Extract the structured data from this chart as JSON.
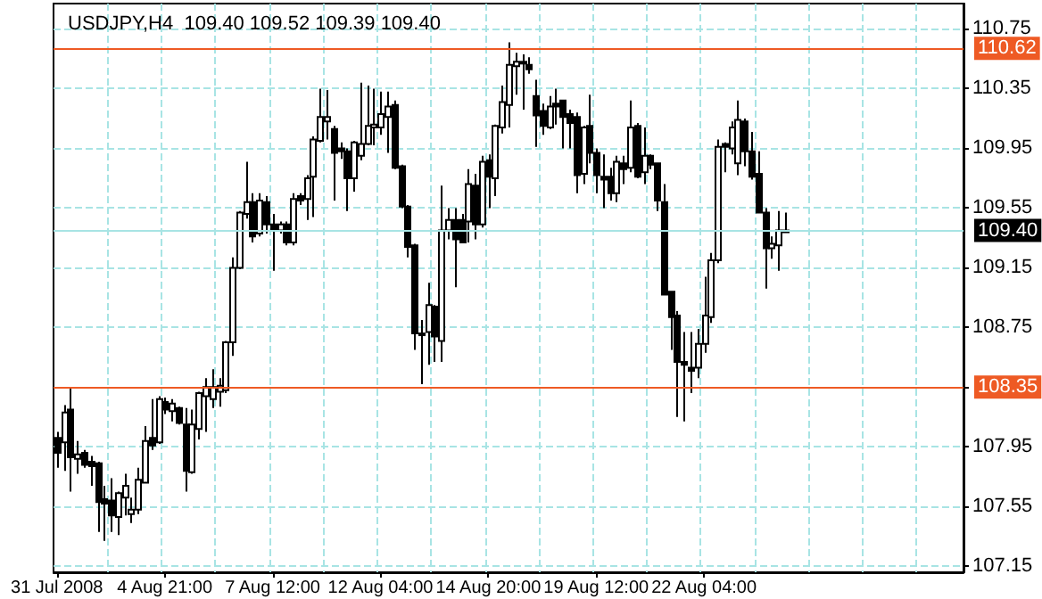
{
  "chart_data": {
    "type": "candlestick",
    "title": "USDJPY,H4  109.40 109.52 109.39 109.40",
    "categories": [
      "31 Jul 2008",
      null,
      null,
      null,
      null,
      null,
      null,
      null,
      null,
      null,
      null,
      null,
      null,
      null,
      null,
      null,
      "4 Aug 21:00",
      null,
      null,
      null,
      null,
      null,
      null,
      null,
      null,
      null,
      null,
      null,
      null,
      null,
      null,
      null,
      "7 Aug 12:00",
      null,
      null,
      null,
      null,
      null,
      null,
      null,
      null,
      null,
      null,
      null,
      null,
      null,
      null,
      null,
      "12 Aug 04:00",
      null,
      null,
      null,
      null,
      null,
      null,
      null,
      null,
      null,
      null,
      null,
      null,
      null,
      null,
      null,
      "14 Aug 20:00",
      null,
      null,
      null,
      null,
      null,
      null,
      null,
      null,
      null,
      null,
      null,
      null,
      null,
      null,
      null,
      "19 Aug 12:00",
      null,
      null,
      null,
      null,
      null,
      null,
      null,
      null,
      null,
      null,
      null,
      null,
      null,
      null,
      null,
      "22 Aug 04:00",
      null,
      null,
      null,
      null,
      null,
      null,
      null,
      null,
      null,
      null,
      null,
      null,
      null,
      null,
      null,
      null,
      null,
      null,
      null,
      null,
      null,
      null,
      null,
      null,
      null,
      null,
      null,
      null,
      null,
      null,
      null,
      null,
      null,
      null,
      null,
      null,
      null,
      null
    ],
    "ohlc": [
      [
        108.01,
        108.05,
        107.81,
        107.91
      ],
      [
        107.98,
        108.23,
        107.79,
        108.18
      ],
      [
        108.2,
        108.35,
        107.65,
        107.88
      ],
      [
        107.87,
        107.99,
        107.77,
        107.9
      ],
      [
        107.91,
        107.93,
        107.81,
        107.83
      ],
      [
        107.85,
        107.89,
        107.69,
        107.82
      ],
      [
        107.84,
        107.85,
        107.38,
        107.58
      ],
      [
        107.6,
        107.69,
        107.32,
        107.57
      ],
      [
        107.59,
        107.74,
        107.38,
        107.49
      ],
      [
        107.48,
        107.65,
        107.36,
        107.64
      ],
      [
        107.61,
        107.77,
        107.49,
        107.69
      ],
      [
        107.5,
        107.61,
        107.44,
        107.53
      ],
      [
        107.53,
        107.81,
        107.5,
        107.73
      ],
      [
        107.71,
        108.09,
        107.71,
        107.99
      ],
      [
        108.01,
        108.27,
        107.93,
        107.96
      ],
      [
        107.98,
        108.29,
        107.97,
        108.27
      ],
      [
        108.25,
        108.28,
        108.17,
        108.2
      ],
      [
        108.19,
        108.27,
        108.12,
        108.24
      ],
      [
        108.21,
        108.22,
        108.1,
        108.11
      ],
      [
        108.1,
        108.21,
        107.65,
        107.79
      ],
      [
        107.78,
        108.2,
        107.77,
        108.1
      ],
      [
        108.07,
        108.32,
        108.0,
        108.31
      ],
      [
        108.29,
        108.41,
        108.05,
        108.35
      ],
      [
        108.27,
        108.47,
        108.21,
        108.35
      ],
      [
        108.32,
        108.41,
        108.22,
        108.36
      ],
      [
        108.33,
        108.66,
        108.31,
        108.65
      ],
      [
        108.65,
        109.22,
        108.56,
        109.15
      ],
      [
        109.15,
        109.53,
        109.14,
        109.52
      ],
      [
        109.51,
        109.86,
        109.48,
        109.59
      ],
      [
        109.59,
        109.65,
        109.32,
        109.36
      ],
      [
        109.38,
        109.65,
        109.36,
        109.6
      ],
      [
        109.59,
        109.63,
        109.38,
        109.44
      ],
      [
        109.44,
        109.51,
        109.13,
        109.4
      ],
      [
        109.4,
        109.46,
        109.38,
        109.44
      ],
      [
        109.44,
        109.46,
        109.3,
        109.32
      ],
      [
        109.32,
        109.65,
        109.3,
        109.61
      ],
      [
        109.63,
        109.65,
        109.57,
        109.6
      ],
      [
        109.61,
        109.77,
        109.47,
        109.75
      ],
      [
        109.76,
        110.03,
        109.49,
        110.01
      ],
      [
        110.0,
        110.35,
        109.99,
        110.16
      ],
      [
        110.13,
        110.34,
        110.01,
        110.16
      ],
      [
        110.08,
        110.1,
        109.6,
        109.92
      ],
      [
        109.95,
        109.99,
        109.88,
        109.93
      ],
      [
        109.93,
        109.95,
        109.53,
        109.75
      ],
      [
        109.75,
        110.0,
        109.66,
        109.99
      ],
      [
        109.9,
        110.39,
        109.87,
        109.98
      ],
      [
        109.98,
        110.37,
        109.97,
        110.1
      ],
      [
        110.09,
        110.35,
        109.97,
        110.11
      ],
      [
        110.09,
        110.33,
        110.04,
        110.18
      ],
      [
        110.16,
        110.33,
        109.92,
        110.23
      ],
      [
        110.24,
        110.27,
        109.81,
        109.82
      ],
      [
        109.83,
        109.84,
        109.55,
        109.56
      ],
      [
        109.56,
        109.57,
        109.22,
        109.29
      ],
      [
        109.3,
        109.31,
        108.6,
        108.71
      ],
      [
        108.71,
        108.8,
        108.37,
        108.7
      ],
      [
        108.72,
        109.05,
        108.5,
        108.9
      ],
      [
        108.89,
        108.9,
        108.52,
        108.69
      ],
      [
        108.66,
        109.7,
        108.52,
        109.4
      ],
      [
        109.4,
        109.55,
        109.34,
        109.47
      ],
      [
        109.47,
        109.55,
        109.02,
        109.34
      ],
      [
        109.47,
        109.51,
        109.32,
        109.32
      ],
      [
        109.46,
        109.81,
        109.32,
        109.71
      ],
      [
        109.7,
        109.78,
        109.34,
        109.44
      ],
      [
        109.44,
        109.9,
        109.42,
        109.86
      ],
      [
        109.87,
        109.91,
        109.55,
        109.76
      ],
      [
        109.75,
        110.11,
        109.63,
        110.1
      ],
      [
        110.09,
        110.37,
        110.05,
        110.26
      ],
      [
        110.24,
        110.66,
        110.09,
        110.51
      ],
      [
        110.5,
        110.59,
        110.31,
        110.53
      ],
      [
        110.52,
        110.58,
        110.21,
        110.53
      ],
      [
        110.51,
        110.56,
        110.45,
        110.48
      ],
      [
        110.3,
        110.41,
        109.96,
        110.17
      ],
      [
        110.2,
        110.25,
        110.04,
        110.1
      ],
      [
        110.09,
        110.3,
        110.08,
        110.23
      ],
      [
        110.25,
        110.35,
        110.11,
        110.23
      ],
      [
        110.27,
        110.27,
        109.95,
        110.16
      ],
      [
        110.18,
        110.21,
        109.95,
        110.12
      ],
      [
        110.16,
        110.19,
        109.65,
        109.77
      ],
      [
        109.78,
        110.1,
        109.71,
        110.09
      ],
      [
        110.1,
        110.31,
        109.85,
        109.92
      ],
      [
        109.92,
        109.95,
        109.65,
        109.77
      ],
      [
        109.76,
        109.91,
        109.55,
        109.74
      ],
      [
        109.76,
        109.82,
        109.6,
        109.65
      ],
      [
        109.65,
        109.9,
        109.59,
        109.86
      ],
      [
        109.85,
        109.9,
        109.71,
        109.81
      ],
      [
        109.82,
        110.27,
        109.79,
        110.09
      ],
      [
        110.1,
        110.12,
        109.75,
        109.76
      ],
      [
        109.79,
        110.09,
        109.71,
        109.9
      ],
      [
        109.9,
        109.91,
        109.81,
        109.84
      ],
      [
        109.85,
        109.85,
        109.53,
        109.6
      ],
      [
        109.59,
        109.71,
        108.97,
        108.97
      ],
      [
        108.99,
        108.99,
        108.6,
        108.82
      ],
      [
        108.83,
        108.86,
        108.15,
        108.52
      ],
      [
        108.52,
        108.72,
        108.12,
        108.5
      ],
      [
        108.48,
        108.72,
        108.31,
        108.46
      ],
      [
        108.48,
        108.74,
        108.41,
        108.64
      ],
      [
        108.64,
        109.09,
        108.58,
        108.83
      ],
      [
        108.82,
        109.25,
        108.78,
        109.2
      ],
      [
        109.2,
        110.01,
        109.18,
        109.96
      ],
      [
        109.98,
        109.99,
        109.79,
        109.96
      ],
      [
        109.95,
        110.13,
        109.91,
        110.09
      ],
      [
        109.85,
        110.27,
        109.77,
        110.14
      ],
      [
        110.13,
        110.15,
        109.83,
        109.93
      ],
      [
        109.93,
        110.06,
        109.74,
        109.76
      ],
      [
        109.78,
        109.93,
        109.52,
        109.52
      ],
      [
        109.52,
        109.55,
        109.01,
        109.28
      ],
      [
        109.28,
        109.36,
        109.21,
        109.31
      ],
      [
        109.3,
        109.53,
        109.13,
        109.4
      ],
      [
        109.4,
        109.52,
        109.39,
        109.4
      ],
      null,
      null,
      null,
      null,
      null,
      null,
      null,
      null,
      null,
      null,
      null,
      null,
      null,
      null,
      null,
      null,
      null,
      null,
      null,
      null,
      null,
      null,
      null,
      null,
      null,
      null
    ],
    "color": "#000000",
    "ylim": [
      107.11,
      110.92
    ],
    "yticks": [
      110.75,
      110.35,
      109.95,
      109.55,
      109.15,
      108.75,
      {
        "value": 108.35,
        "label": null
      },
      107.95,
      107.55,
      107.15
    ],
    "grid": true,
    "ref_lines": [
      {
        "axis": "y",
        "value": 110.62,
        "label": "110.62",
        "color": "#ee5a24"
      },
      {
        "axis": "y",
        "value": 108.35,
        "label": "108.35",
        "color": "#ee5a24"
      },
      {
        "axis": "y",
        "value": 109.4,
        "label": "109.40",
        "color": "#a8e4e4"
      }
    ]
  }
}
